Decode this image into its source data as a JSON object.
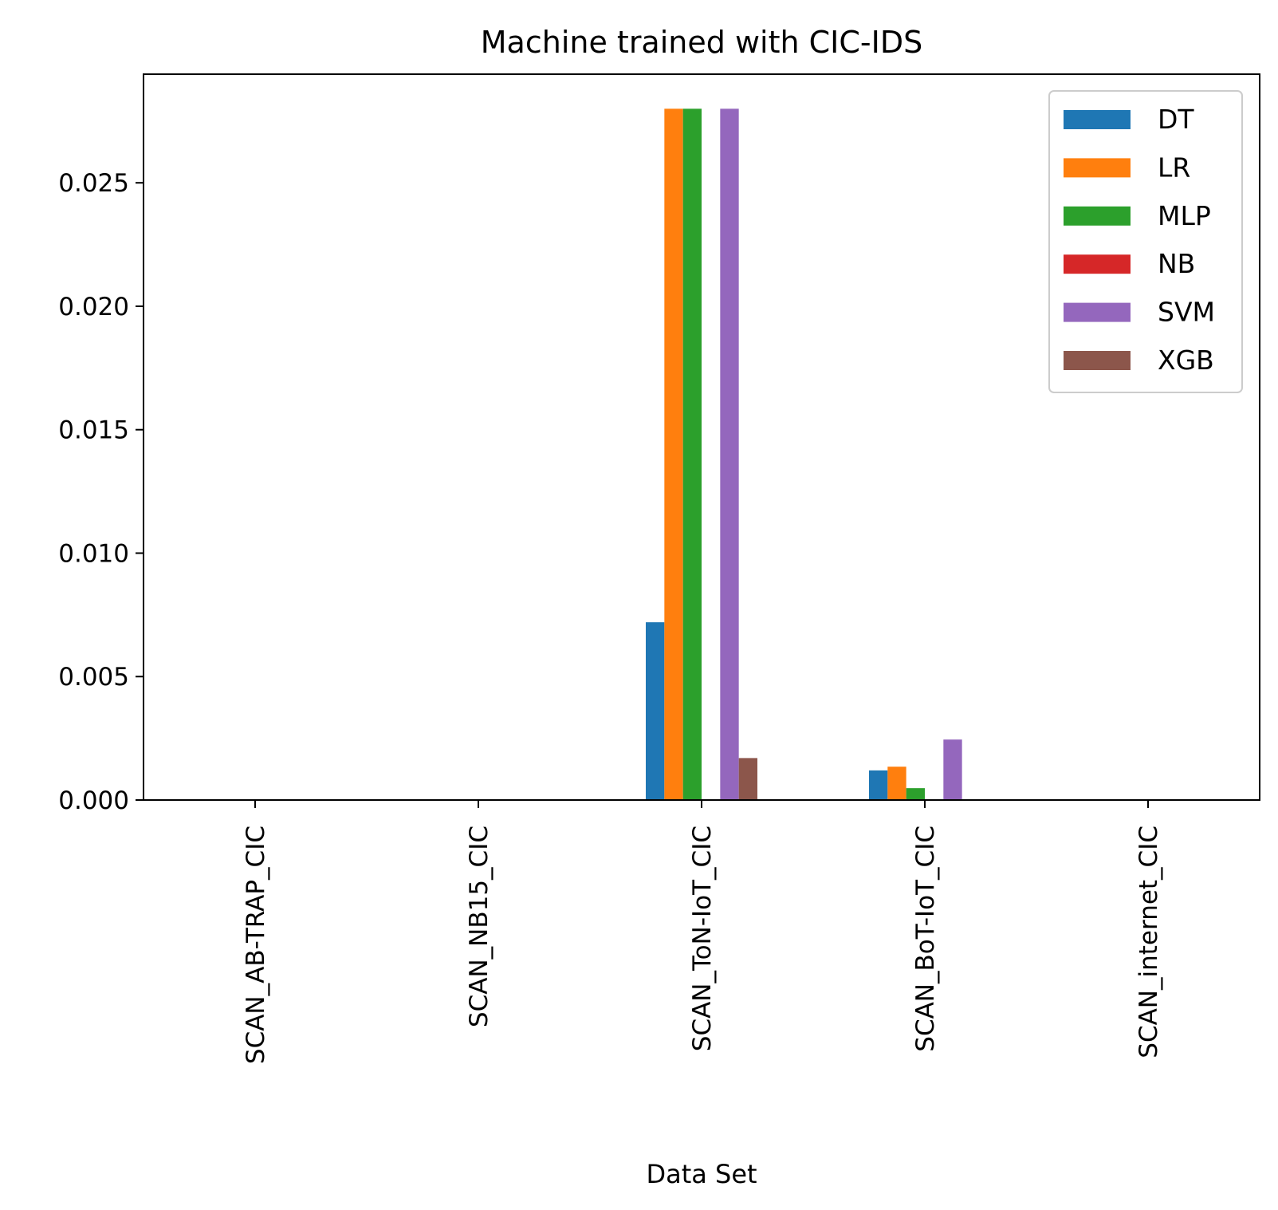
{
  "chart_data": {
    "type": "bar",
    "title": "Machine trained with CIC-IDS",
    "xlabel": "Data Set",
    "ylabel": "",
    "categories": [
      "SCAN_AB-TRAP_CIC",
      "SCAN_NB15_CIC",
      "SCAN_ToN-IoT_CIC",
      "SCAN_BoT-IoT_CIC",
      "SCAN_internet_CIC"
    ],
    "series": [
      {
        "name": "DT",
        "color": "#1f77b4",
        "values": [
          0,
          0,
          0.0072,
          0.0012,
          0
        ]
      },
      {
        "name": "LR",
        "color": "#ff7f0e",
        "values": [
          0,
          0,
          0.028,
          0.00135,
          0
        ]
      },
      {
        "name": "MLP",
        "color": "#2ca02c",
        "values": [
          0,
          0,
          0.028,
          0.00048,
          0
        ]
      },
      {
        "name": "NB",
        "color": "#d62728",
        "values": [
          0,
          0,
          0,
          0,
          0
        ]
      },
      {
        "name": "SVM",
        "color": "#9467bd",
        "values": [
          0,
          0,
          0.028,
          0.00245,
          0
        ]
      },
      {
        "name": "XGB",
        "color": "#8c564b",
        "values": [
          0,
          0,
          0.0017,
          0,
          0
        ]
      }
    ],
    "yticks": [
      "0.000",
      "0.005",
      "0.010",
      "0.015",
      "0.020",
      "0.025"
    ],
    "ylim": [
      0,
      0.0294
    ],
    "grid": false,
    "legend_position": "top-right"
  }
}
